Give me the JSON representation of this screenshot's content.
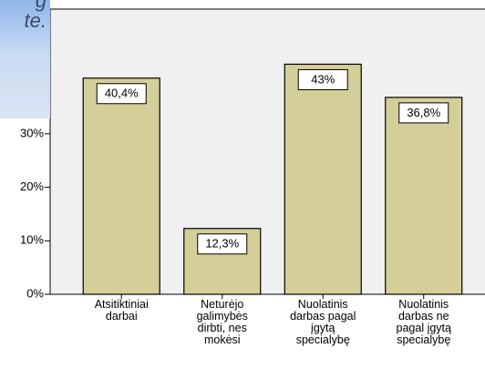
{
  "chart_data": {
    "type": "bar",
    "categories": [
      "Atsitiktiniai\ndarbai",
      "Neturėjo\ngalimybės\ndirbti, nes\nmokėsi",
      "Nuolatinis\ndarbas pagal\nįgytą\nspecialybę",
      "Nuolatinis\ndarbas ne\npagal įgytą\nspecialybę"
    ],
    "values": [
      40.4,
      12.3,
      43,
      36.8
    ],
    "value_labels": [
      "40,4%",
      "12,3%",
      "43%",
      "36,8%"
    ],
    "color": "#d4cf98",
    "ylim": [
      0,
      53.3
    ],
    "yticks": [
      {
        "value": 0,
        "label": "0%"
      },
      {
        "value": 10,
        "label": "10%"
      },
      {
        "value": 20,
        "label": "20%"
      },
      {
        "value": 30,
        "label": "30%"
      }
    ]
  },
  "overlay": {
    "lines": [
      "g",
      "te."
    ]
  }
}
